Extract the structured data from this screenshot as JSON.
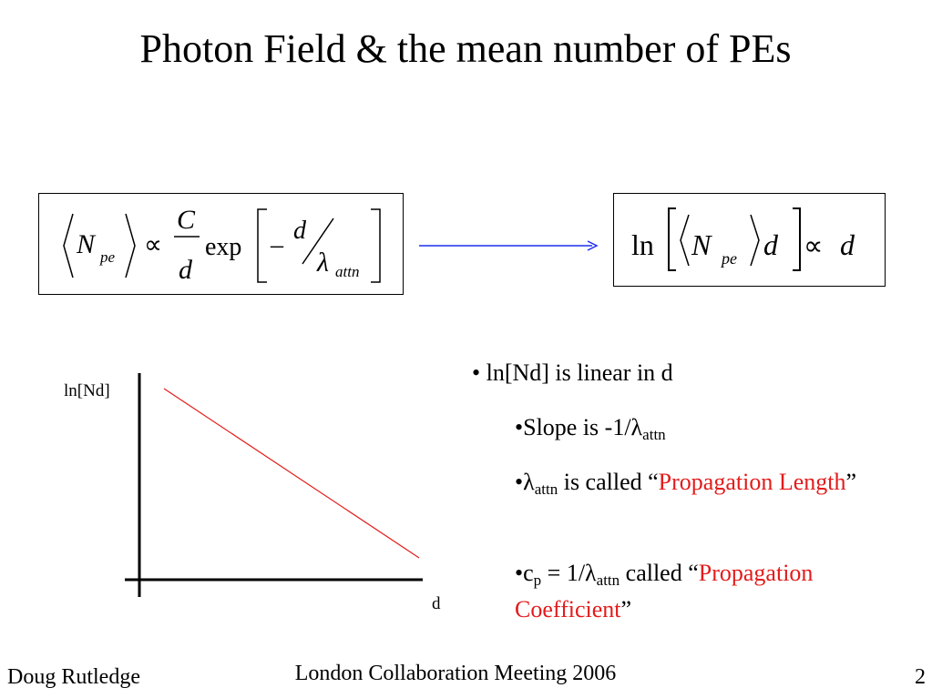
{
  "title": "Photon Field & the mean number of PEs",
  "equations": {
    "left": {
      "n": "N",
      "n_sub": "pe",
      "prop": "∝",
      "num": "C",
      "den": "d",
      "exp": "exp",
      "minus": "–",
      "d": "d",
      "lambda": "λ",
      "lambda_sub": "attn"
    },
    "right": {
      "ln": "ln",
      "n": "N",
      "n_sub": "pe",
      "d": "d",
      "prop": "∝",
      "rhs": "d"
    }
  },
  "graph": {
    "y_label": "ln[Nd]",
    "x_label": "d"
  },
  "bullets": [
    {
      "parts": [
        "ln[Nd] is linear in d"
      ]
    },
    {
      "parts": [
        "Slope is -1/λ",
        "attn"
      ]
    },
    {
      "parts": [
        "λ",
        "attn",
        "is called “",
        "Propagation Length",
        "”"
      ]
    },
    {
      "parts": [
        "c",
        "p",
        "= 1/λ",
        "attn",
        "called “",
        "Propagation Coefficient",
        "”"
      ]
    }
  ],
  "footer": {
    "author": "Doug Rutledge",
    "event": "London Collaboration Meeting 2006",
    "page": "2"
  }
}
